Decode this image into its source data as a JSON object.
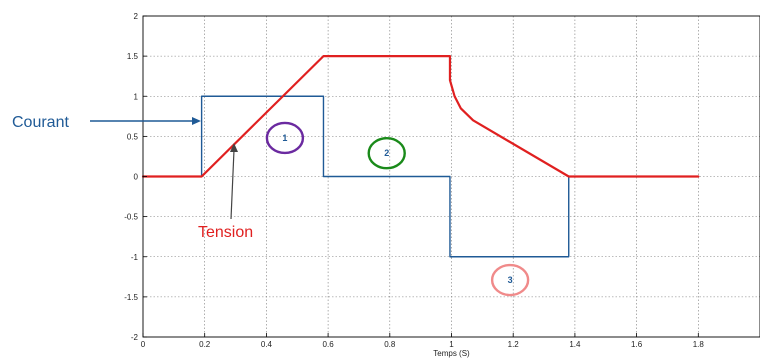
{
  "chart_data": {
    "type": "line",
    "xlabel": "Temps (S)",
    "ylabel": "",
    "xlim": [
      0,
      2
    ],
    "ylim": [
      -2,
      2
    ],
    "xticks": [
      0,
      0.2,
      0.4,
      0.6,
      0.8,
      1,
      1.2,
      1.4,
      1.6,
      1.8
    ],
    "yticks": [
      2,
      1.5,
      1,
      0.5,
      0,
      -0.5,
      -1,
      -1.5,
      -2
    ],
    "xtick_labels": [
      "0",
      "0.2",
      "0.4",
      "0.6",
      "0.8",
      "1",
      "1.2",
      "1.4",
      "1.6",
      "1.8"
    ],
    "ytick_labels": [
      "2",
      "1.5",
      "1",
      "0.5",
      "0",
      "-0.5",
      "-1",
      "-1.5",
      "-2"
    ],
    "grid": true,
    "series": [
      {
        "name": "Courant",
        "color": "#1f5a96",
        "x": [
          0,
          0.19,
          0.19,
          0.585,
          0.585,
          0.995,
          0.995,
          1.38,
          1.38,
          1.8
        ],
        "y": [
          0,
          0,
          1,
          1,
          0,
          0,
          -1,
          -1,
          0,
          0
        ]
      },
      {
        "name": "Tension",
        "color": "#e02020",
        "x": [
          0,
          0.19,
          0.585,
          0.995,
          0.995,
          1.01,
          1.03,
          1.07,
          1.38,
          1.8
        ],
        "y": [
          0,
          0,
          1.5,
          1.5,
          1.2,
          1.0,
          0.85,
          0.7,
          0,
          0
        ]
      }
    ],
    "annotations": {
      "courant_label": "Courant",
      "tension_label": "Tension",
      "zone_labels": [
        {
          "text": "1",
          "x": 0.46,
          "y": 0.48,
          "color": "#6b2aa0"
        },
        {
          "text": "2",
          "x": 0.79,
          "y": 0.29,
          "color": "#1a8a1a"
        },
        {
          "text": "3",
          "x": 1.19,
          "y": -1.29,
          "color": "#f08a8a"
        }
      ]
    }
  }
}
